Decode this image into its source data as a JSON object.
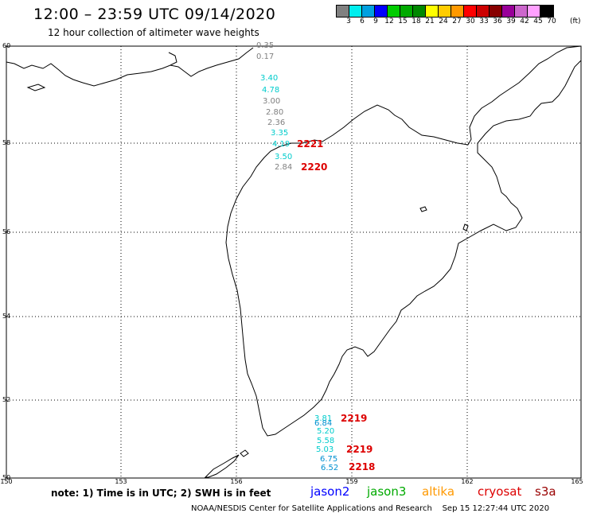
{
  "title": "12:00 – 23:59 UTC 09/14/2020",
  "subtitle": "12 hour collection of altimeter wave heights",
  "legend": {
    "colors": [
      "#808080",
      "#00eeee",
      "#00a0e0",
      "#0000ff",
      "#00cc00",
      "#00aa00",
      "#008800",
      "#ffff00",
      "#ffcc00",
      "#ff9900",
      "#ff0000",
      "#cc0000",
      "#880000",
      "#990099",
      "#cc66cc",
      "#ffa0ff",
      "#000000"
    ],
    "labels": [
      "3",
      "6",
      "9",
      "12",
      "15",
      "18",
      "21",
      "24",
      "27",
      "30",
      "33",
      "36",
      "39",
      "42",
      "45",
      "70"
    ],
    "unit": "(ft)"
  },
  "axes": {
    "lat_ticks": [
      "60",
      "58",
      "56",
      "54",
      "52",
      "50"
    ],
    "lon_ticks": [
      "150",
      "153",
      "156",
      "159",
      "162",
      "165"
    ]
  },
  "measurements": [
    {
      "value": "0.35",
      "color": "#808080"
    },
    {
      "value": "0.17",
      "color": "#808080"
    },
    {
      "value": "3.40",
      "color": "#00cccc"
    },
    {
      "value": "4.78",
      "color": "#00cccc"
    },
    {
      "value": "3.00",
      "color": "#808080"
    },
    {
      "value": "2.80",
      "color": "#808080"
    },
    {
      "value": "2.36",
      "color": "#808080"
    },
    {
      "value": "3.35",
      "color": "#00cccc"
    },
    {
      "value": "4.19",
      "color": "#00cccc"
    },
    {
      "value": "3.50",
      "color": "#00cccc"
    },
    {
      "value": "2.84",
      "color": "#808080"
    },
    {
      "value": "3.81",
      "color": "#00cccc"
    },
    {
      "value": "6.84",
      "color": "#0090d0"
    },
    {
      "value": "5.20",
      "color": "#00cccc"
    },
    {
      "value": "5.58",
      "color": "#00cccc"
    },
    {
      "value": "5.03",
      "color": "#00cccc"
    },
    {
      "value": "6.75",
      "color": "#0090d0"
    },
    {
      "value": "6.52",
      "color": "#0090d0"
    }
  ],
  "passes": [
    "2221",
    "2220",
    "2219",
    "2219",
    "2218"
  ],
  "note": "note: 1) Time is in UTC; 2) SWH is in feet",
  "satellites": [
    {
      "name": "jason2",
      "color": "#0000ff"
    },
    {
      "name": "jason3",
      "color": "#00aa00"
    },
    {
      "name": "altika",
      "color": "#ff9900"
    },
    {
      "name": "cryosat",
      "color": "#dd0000"
    },
    {
      "name": "s3a",
      "color": "#990000"
    }
  ],
  "credit": "NOAA/NESDIS Center for Satellite Applications and Research",
  "timestamp": "Sep 15 12:27:44 UTC 2020"
}
